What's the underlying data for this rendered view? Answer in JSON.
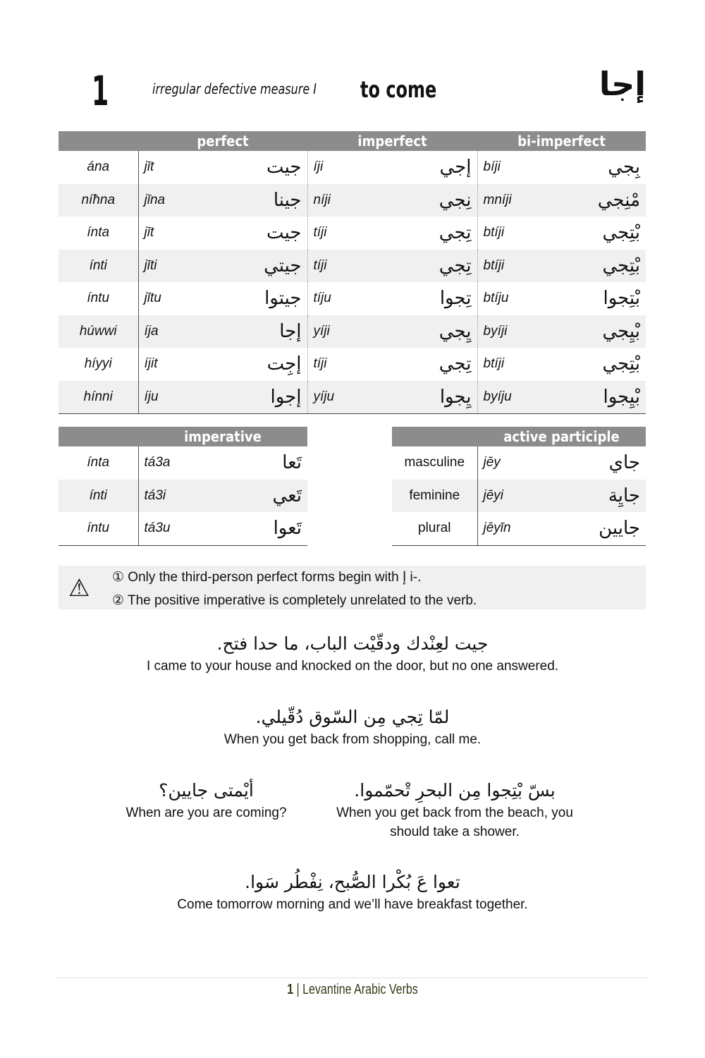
{
  "header": {
    "number": "1",
    "category": "irregular defective measure I",
    "translation": "to come",
    "arabic": "إجا"
  },
  "conjugation": {
    "columns": [
      "",
      "perfect",
      "imperfect",
      "bi-imperfect"
    ],
    "rows": [
      {
        "pronoun": "ána",
        "perf_t": "jīt",
        "perf_a": "جيت",
        "imp_t": "íji",
        "imp_a": "إجي",
        "bi_t": "bíji",
        "bi_a": "بِجي"
      },
      {
        "pronoun": "níħna",
        "perf_t": "jīna",
        "perf_a": "جينا",
        "imp_t": "níji",
        "imp_a": "نِجي",
        "bi_t": "mníji",
        "bi_a": "مْنِجي"
      },
      {
        "pronoun": "ínta",
        "perf_t": "jīt",
        "perf_a": "جيت",
        "imp_t": "tíji",
        "imp_a": "تِجي",
        "bi_t": "btíji",
        "bi_a": "بْتِجي"
      },
      {
        "pronoun": "ínti",
        "perf_t": "jīti",
        "perf_a": "جيتي",
        "imp_t": "tíji",
        "imp_a": "تِجي",
        "bi_t": "btíji",
        "bi_a": "بْتِجي"
      },
      {
        "pronoun": "íntu",
        "perf_t": "jītu",
        "perf_a": "جيتوا",
        "imp_t": "tíju",
        "imp_a": "تِجوا",
        "bi_t": "btíju",
        "bi_a": "بْتِجوا"
      },
      {
        "pronoun": "húwwi",
        "perf_t": "íja",
        "perf_a": "إجا",
        "imp_t": "yíji",
        "imp_a": "يِجي",
        "bi_t": "byíji",
        "bi_a": "بْيِجي"
      },
      {
        "pronoun": "híyyi",
        "perf_t": "íjit",
        "perf_a": "إجِت",
        "imp_t": "tíji",
        "imp_a": "تِجي",
        "bi_t": "btíji",
        "bi_a": "بْتِجي"
      },
      {
        "pronoun": "hínni",
        "perf_t": "íju",
        "perf_a": "إجوا",
        "imp_t": "yíju",
        "imp_a": "يِجوا",
        "bi_t": "byíju",
        "bi_a": "بْيِجوا"
      }
    ]
  },
  "imperative": {
    "title": "imperative",
    "rows": [
      {
        "pronoun": "ínta",
        "t": "tá3a",
        "a": "تَعا"
      },
      {
        "pronoun": "ínti",
        "t": "tá3i",
        "a": "تَعي"
      },
      {
        "pronoun": "íntu",
        "t": "tá3u",
        "a": "تَعوا"
      }
    ]
  },
  "participle": {
    "title": "active participle",
    "rows": [
      {
        "label": "masculine",
        "t": "jēy",
        "a": "جاي"
      },
      {
        "label": "feminine",
        "t": "jēyi",
        "a": "جايِة"
      },
      {
        "label": "plural",
        "t": "jēyīn",
        "a": "جايين"
      }
    ]
  },
  "notes": {
    "icon": "warning-icon",
    "items": [
      "① Only the third-person perfect forms begin with إ i-.",
      "② The positive imperative is completely unrelated to the verb."
    ]
  },
  "examples": [
    {
      "ar": "جيت لعِنْدك ودقّيْت الباب، ما حدا فتح.",
      "en": "I came to your house and knocked on the door, but no one answered."
    },
    {
      "ar": "لمّا تِجي مِن السّوق دُقّيلي.",
      "en": "When you get back from shopping, call me."
    },
    {
      "ar": "أيْمتى جايين؟",
      "en": "When are you are coming?"
    },
    {
      "ar": "بسّ بْتِجوا مِن البحرِ تْحمّموا.",
      "en": "When you get back from the beach, you should take a shower."
    },
    {
      "ar": "تعوا عَ بُكْرا الصُّبح، نِفْطُر سَوا.",
      "en": "Come tomorrow morning and we’ll have breakfast together."
    }
  ],
  "footer": {
    "page": "1",
    "title": "| Levantine Arabic Verbs"
  }
}
